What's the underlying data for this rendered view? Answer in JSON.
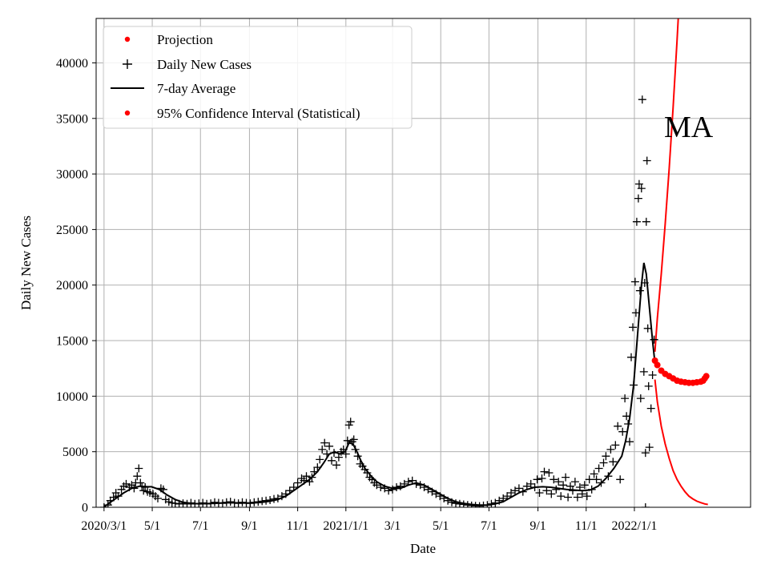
{
  "chart_data": {
    "type": "scatter",
    "title": "",
    "xlabel": "Date",
    "ylabel": "Daily New Cases",
    "xlim": [
      -10,
      818
    ],
    "ylim": [
      0,
      44000
    ],
    "grid": true,
    "legend_position": "top-left",
    "annotation": "MA",
    "x_unit": "days since 2020-03-01",
    "x_ticks": [
      {
        "x": 0,
        "label": "2020/3/1"
      },
      {
        "x": 61,
        "label": "5/1"
      },
      {
        "x": 122,
        "label": "7/1"
      },
      {
        "x": 184,
        "label": "9/1"
      },
      {
        "x": 245,
        "label": "11/1"
      },
      {
        "x": 306,
        "label": "2021/1/1"
      },
      {
        "x": 365,
        "label": "3/1"
      },
      {
        "x": 426,
        "label": "5/1"
      },
      {
        "x": 487,
        "label": "7/1"
      },
      {
        "x": 549,
        "label": "9/1"
      },
      {
        "x": 610,
        "label": "11/1"
      },
      {
        "x": 671,
        "label": "2022/1/1"
      }
    ],
    "y_ticks": [
      0,
      5000,
      10000,
      15000,
      20000,
      25000,
      30000,
      35000,
      40000
    ],
    "series": [
      {
        "name": "Projection",
        "kind": "dots",
        "color": "#ff0000"
      },
      {
        "name": "Daily New Cases",
        "kind": "plus",
        "color": "#000000"
      },
      {
        "name": "7-day Average",
        "kind": "line",
        "color": "#000000"
      },
      {
        "name": "95% Confidence Interval (Statistical)",
        "kind": "dots",
        "color": "#ff0000"
      }
    ],
    "average_curve": [
      [
        0,
        0
      ],
      [
        5,
        300
      ],
      [
        15,
        800
      ],
      [
        25,
        1300
      ],
      [
        35,
        1700
      ],
      [
        45,
        1900
      ],
      [
        55,
        1850
      ],
      [
        60,
        1850
      ],
      [
        70,
        1600
      ],
      [
        80,
        1100
      ],
      [
        90,
        700
      ],
      [
        100,
        450
      ],
      [
        110,
        350
      ],
      [
        120,
        320
      ],
      [
        130,
        330
      ],
      [
        140,
        350
      ],
      [
        150,
        400
      ],
      [
        160,
        420
      ],
      [
        170,
        400
      ],
      [
        180,
        380
      ],
      [
        190,
        400
      ],
      [
        200,
        450
      ],
      [
        210,
        550
      ],
      [
        220,
        700
      ],
      [
        230,
        1000
      ],
      [
        240,
        1500
      ],
      [
        250,
        2000
      ],
      [
        260,
        2500
      ],
      [
        270,
        3200
      ],
      [
        278,
        4000
      ],
      [
        285,
        4800
      ],
      [
        292,
        5000
      ],
      [
        298,
        4800
      ],
      [
        305,
        5000
      ],
      [
        310,
        5800
      ],
      [
        315,
        5700
      ],
      [
        320,
        5000
      ],
      [
        325,
        4200
      ],
      [
        330,
        3500
      ],
      [
        338,
        2800
      ],
      [
        345,
        2300
      ],
      [
        355,
        1900
      ],
      [
        365,
        1700
      ],
      [
        375,
        1700
      ],
      [
        385,
        2000
      ],
      [
        395,
        2200
      ],
      [
        405,
        2000
      ],
      [
        415,
        1600
      ],
      [
        425,
        1200
      ],
      [
        435,
        800
      ],
      [
        445,
        500
      ],
      [
        455,
        350
      ],
      [
        465,
        250
      ],
      [
        475,
        200
      ],
      [
        485,
        200
      ],
      [
        495,
        300
      ],
      [
        505,
        500
      ],
      [
        515,
        900
      ],
      [
        525,
        1300
      ],
      [
        535,
        1600
      ],
      [
        545,
        1800
      ],
      [
        555,
        1850
      ],
      [
        565,
        1800
      ],
      [
        575,
        1700
      ],
      [
        585,
        1600
      ],
      [
        595,
        1550
      ],
      [
        605,
        1500
      ],
      [
        615,
        1550
      ],
      [
        625,
        1900
      ],
      [
        635,
        2600
      ],
      [
        645,
        3500
      ],
      [
        655,
        4600
      ],
      [
        660,
        6000
      ],
      [
        665,
        8000
      ],
      [
        670,
        11000
      ],
      [
        675,
        15500
      ],
      [
        680,
        20000
      ],
      [
        683,
        22000
      ],
      [
        686,
        21000
      ],
      [
        690,
        18000
      ],
      [
        694,
        15000
      ],
      [
        697,
        13000
      ]
    ],
    "daily_points": [
      [
        0,
        0
      ],
      [
        5,
        200
      ],
      [
        8,
        600
      ],
      [
        12,
        900
      ],
      [
        15,
        1300
      ],
      [
        18,
        1000
      ],
      [
        22,
        1600
      ],
      [
        25,
        1900
      ],
      [
        28,
        2100
      ],
      [
        32,
        1800
      ],
      [
        35,
        2000
      ],
      [
        38,
        1700
      ],
      [
        40,
        2200
      ],
      [
        42,
        2800
      ],
      [
        44,
        3500
      ],
      [
        46,
        2200
      ],
      [
        48,
        1900
      ],
      [
        50,
        1500
      ],
      [
        52,
        1800
      ],
      [
        55,
        1400
      ],
      [
        58,
        1300
      ],
      [
        62,
        1200
      ],
      [
        65,
        1000
      ],
      [
        68,
        800
      ],
      [
        72,
        1700
      ],
      [
        75,
        1600
      ],
      [
        78,
        700
      ],
      [
        82,
        500
      ],
      [
        86,
        400
      ],
      [
        90,
        350
      ],
      [
        95,
        300
      ],
      [
        100,
        350
      ],
      [
        105,
        300
      ],
      [
        110,
        400
      ],
      [
        115,
        300
      ],
      [
        120,
        350
      ],
      [
        125,
        400
      ],
      [
        130,
        300
      ],
      [
        135,
        350
      ],
      [
        140,
        450
      ],
      [
        145,
        400
      ],
      [
        150,
        350
      ],
      [
        155,
        450
      ],
      [
        160,
        500
      ],
      [
        165,
        400
      ],
      [
        170,
        350
      ],
      [
        175,
        450
      ],
      [
        180,
        400
      ],
      [
        185,
        350
      ],
      [
        190,
        450
      ],
      [
        195,
        500
      ],
      [
        200,
        550
      ],
      [
        205,
        600
      ],
      [
        210,
        650
      ],
      [
        215,
        750
      ],
      [
        220,
        800
      ],
      [
        225,
        1000
      ],
      [
        230,
        1200
      ],
      [
        235,
        1500
      ],
      [
        240,
        1800
      ],
      [
        245,
        2200
      ],
      [
        250,
        2600
      ],
      [
        253,
        2400
      ],
      [
        256,
        2800
      ],
      [
        260,
        2300
      ],
      [
        263,
        2700
      ],
      [
        266,
        3200
      ],
      [
        270,
        3600
      ],
      [
        273,
        4300
      ],
      [
        276,
        5200
      ],
      [
        279,
        5800
      ],
      [
        282,
        4800
      ],
      [
        285,
        5500
      ],
      [
        288,
        4200
      ],
      [
        291,
        4900
      ],
      [
        294,
        3800
      ],
      [
        297,
        4500
      ],
      [
        300,
        5000
      ],
      [
        303,
        5200
      ],
      [
        306,
        4800
      ],
      [
        308,
        6000
      ],
      [
        310,
        7400
      ],
      [
        312,
        7700
      ],
      [
        314,
        5900
      ],
      [
        316,
        6100
      ],
      [
        318,
        5200
      ],
      [
        321,
        4600
      ],
      [
        324,
        3900
      ],
      [
        327,
        3700
      ],
      [
        330,
        3400
      ],
      [
        333,
        3100
      ],
      [
        336,
        2700
      ],
      [
        339,
        2500
      ],
      [
        342,
        2200
      ],
      [
        345,
        2000
      ],
      [
        350,
        1800
      ],
      [
        355,
        1700
      ],
      [
        360,
        1500
      ],
      [
        365,
        1600
      ],
      [
        370,
        1800
      ],
      [
        375,
        1900
      ],
      [
        380,
        2100
      ],
      [
        385,
        2300
      ],
      [
        390,
        2400
      ],
      [
        395,
        2100
      ],
      [
        400,
        2000
      ],
      [
        405,
        1800
      ],
      [
        410,
        1600
      ],
      [
        415,
        1400
      ],
      [
        420,
        1200
      ],
      [
        425,
        1000
      ],
      [
        430,
        800
      ],
      [
        435,
        600
      ],
      [
        440,
        450
      ],
      [
        445,
        350
      ],
      [
        450,
        300
      ],
      [
        455,
        250
      ],
      [
        460,
        200
      ],
      [
        465,
        150
      ],
      [
        470,
        120
      ],
      [
        475,
        100
      ],
      [
        480,
        150
      ],
      [
        485,
        200
      ],
      [
        490,
        300
      ],
      [
        495,
        400
      ],
      [
        500,
        600
      ],
      [
        505,
        800
      ],
      [
        510,
        1000
      ],
      [
        515,
        1300
      ],
      [
        520,
        1500
      ],
      [
        525,
        1700
      ],
      [
        530,
        1400
      ],
      [
        535,
        1900
      ],
      [
        540,
        2100
      ],
      [
        545,
        1800
      ],
      [
        548,
        2500
      ],
      [
        551,
        1300
      ],
      [
        554,
        2600
      ],
      [
        557,
        3200
      ],
      [
        560,
        1500
      ],
      [
        563,
        3100
      ],
      [
        566,
        1200
      ],
      [
        569,
        2500
      ],
      [
        572,
        1600
      ],
      [
        575,
        2300
      ],
      [
        578,
        1000
      ],
      [
        581,
        2000
      ],
      [
        584,
        2700
      ],
      [
        587,
        900
      ],
      [
        590,
        1900
      ],
      [
        593,
        1500
      ],
      [
        596,
        2300
      ],
      [
        599,
        900
      ],
      [
        602,
        1800
      ],
      [
        605,
        1200
      ],
      [
        608,
        2000
      ],
      [
        611,
        1000
      ],
      [
        614,
        2500
      ],
      [
        617,
        1600
      ],
      [
        620,
        3000
      ],
      [
        623,
        2500
      ],
      [
        626,
        3500
      ],
      [
        629,
        2200
      ],
      [
        632,
        4000
      ],
      [
        635,
        4600
      ],
      [
        638,
        2800
      ],
      [
        641,
        5200
      ],
      [
        644,
        4100
      ],
      [
        647,
        5600
      ],
      [
        650,
        7300
      ],
      [
        653,
        2500
      ],
      [
        656,
        6800
      ],
      [
        659,
        9800
      ],
      [
        661,
        8200
      ],
      [
        663,
        7500
      ],
      [
        665,
        5900
      ],
      [
        667,
        13500
      ],
      [
        669,
        16200
      ],
      [
        670,
        11000
      ],
      [
        672,
        20300
      ],
      [
        673,
        17500
      ],
      [
        674,
        25700
      ],
      [
        676,
        27800
      ],
      [
        677,
        29100
      ],
      [
        678,
        19500
      ],
      [
        679,
        9800
      ],
      [
        680,
        28700
      ],
      [
        681,
        36700
      ],
      [
        683,
        12200
      ],
      [
        684,
        20200
      ],
      [
        685,
        4900
      ],
      [
        686,
        25700
      ],
      [
        687,
        31200
      ],
      [
        688,
        16100
      ],
      [
        689,
        10900
      ],
      [
        690,
        5400
      ],
      [
        692,
        8900
      ],
      [
        694,
        11900
      ],
      [
        696,
        15100
      ],
      [
        685,
        0
      ]
    ],
    "projection_points": [
      [
        697,
        13200
      ],
      [
        700,
        12800
      ],
      [
        705,
        12300
      ],
      [
        710,
        12000
      ],
      [
        715,
        11800
      ],
      [
        720,
        11600
      ],
      [
        725,
        11400
      ],
      [
        730,
        11300
      ],
      [
        735,
        11250
      ],
      [
        740,
        11200
      ],
      [
        745,
        11200
      ],
      [
        750,
        11250
      ],
      [
        755,
        11300
      ],
      [
        758,
        11400
      ],
      [
        760,
        11600
      ],
      [
        762,
        11800
      ]
    ],
    "ci_upper": [
      [
        697,
        14000
      ],
      [
        700,
        17000
      ],
      [
        705,
        21000
      ],
      [
        710,
        25500
      ],
      [
        715,
        30500
      ],
      [
        720,
        36000
      ],
      [
        725,
        42000
      ],
      [
        728,
        46000
      ]
    ],
    "ci_lower": [
      [
        697,
        11500
      ],
      [
        700,
        9500
      ],
      [
        705,
        7300
      ],
      [
        710,
        5700
      ],
      [
        715,
        4400
      ],
      [
        720,
        3300
      ],
      [
        725,
        2500
      ],
      [
        730,
        1900
      ],
      [
        735,
        1400
      ],
      [
        740,
        1000
      ],
      [
        745,
        750
      ],
      [
        750,
        550
      ],
      [
        755,
        420
      ],
      [
        760,
        300
      ],
      [
        764,
        250
      ]
    ]
  }
}
